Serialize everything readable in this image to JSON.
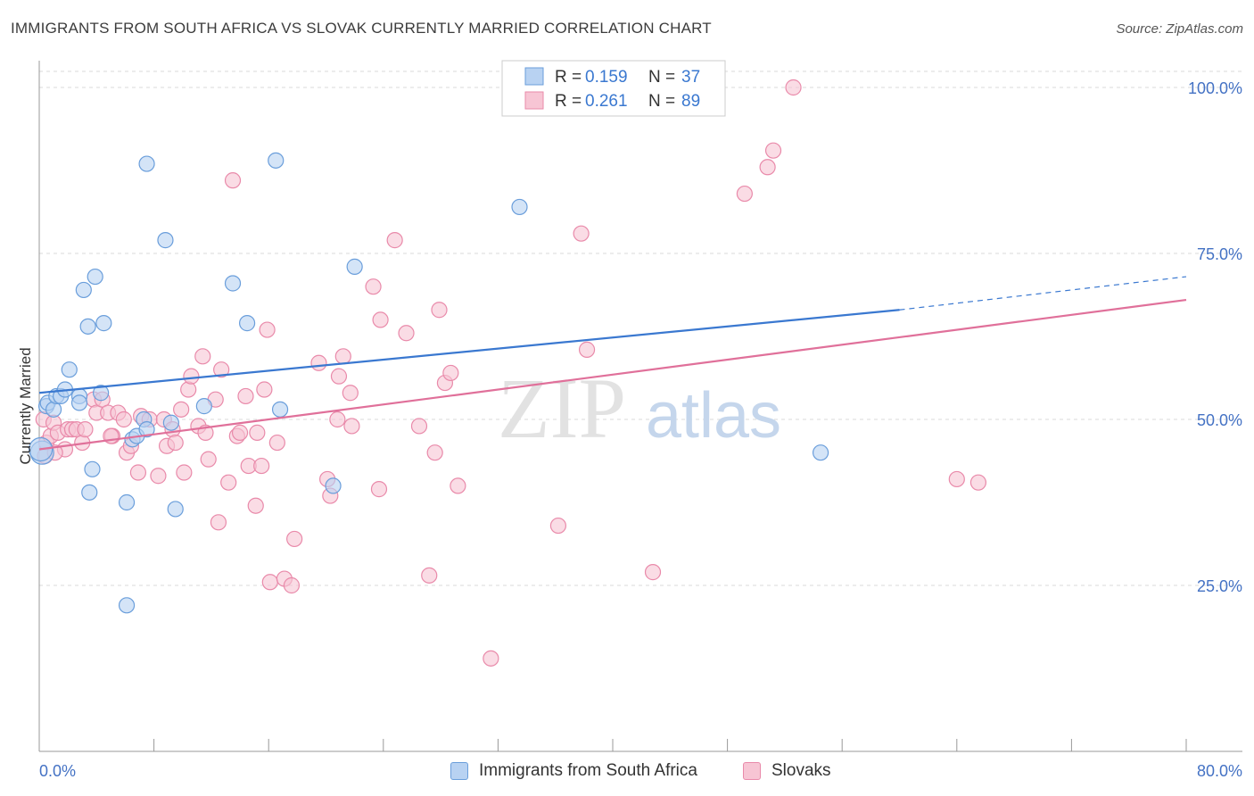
{
  "title": "IMMIGRANTS FROM SOUTH AFRICA VS SLOVAK CURRENTLY MARRIED CORRELATION CHART",
  "source": "Source: ZipAtlas.com",
  "watermark": {
    "zip": "ZIP",
    "atlas": "atlas"
  },
  "colors": {
    "blue_fill": "#b8d2f2",
    "blue_stroke": "#6a9edb",
    "blue_line": "#3a78d0",
    "pink_fill": "#f7c5d4",
    "pink_stroke": "#e98aaa",
    "pink_line": "#e0709a",
    "axis_label": "#4472c4",
    "grid": "#d9d9d9"
  },
  "legend_top": {
    "rows": [
      {
        "r_label": "R = ",
        "r_value": "0.159",
        "n_label": "N = ",
        "n_value": "37",
        "series": "blue"
      },
      {
        "r_label": "R = ",
        "r_value": "0.261",
        "n_label": "N = ",
        "n_value": "89",
        "series": "pink"
      }
    ]
  },
  "legend_bottom": {
    "blue_label": "Immigrants from South Africa",
    "pink_label": "Slovaks"
  },
  "chart_data": {
    "type": "scatter",
    "xlabel": "",
    "ylabel": "Currently Married",
    "xlim": [
      0,
      80
    ],
    "ylim": [
      0,
      100
    ],
    "x_tick_labels": {
      "left": "0.0%",
      "right": "80.0%"
    },
    "y_ticks": [
      {
        "value": 25,
        "label": "25.0%"
      },
      {
        "value": 50,
        "label": "50.0%"
      },
      {
        "value": 75,
        "label": "75.0%"
      },
      {
        "value": 100,
        "label": "100.0%"
      }
    ],
    "grid": true,
    "legend_position": "top-center",
    "series": [
      {
        "name": "Immigrants from South Africa",
        "color": "blue",
        "points": [
          [
            0.2,
            45.0
          ],
          [
            0.5,
            52.0
          ],
          [
            0.6,
            52.5
          ],
          [
            1.0,
            51.5
          ],
          [
            1.2,
            53.5
          ],
          [
            1.5,
            53.5
          ],
          [
            1.8,
            54.5
          ],
          [
            2.1,
            57.5
          ],
          [
            2.8,
            53.5
          ],
          [
            2.8,
            52.5
          ],
          [
            3.1,
            69.5
          ],
          [
            3.4,
            64.0
          ],
          [
            3.5,
            39.0
          ],
          [
            3.7,
            42.5
          ],
          [
            3.9,
            71.5
          ],
          [
            4.3,
            54.0
          ],
          [
            4.5,
            64.5
          ],
          [
            6.1,
            37.5
          ],
          [
            6.1,
            22.0
          ],
          [
            6.5,
            47.0
          ],
          [
            6.8,
            47.5
          ],
          [
            7.3,
            50.0
          ],
          [
            7.5,
            48.5
          ],
          [
            7.5,
            88.5
          ],
          [
            8.8,
            77.0
          ],
          [
            9.2,
            49.5
          ],
          [
            9.5,
            36.5
          ],
          [
            11.5,
            52.0
          ],
          [
            13.5,
            70.5
          ],
          [
            14.5,
            64.5
          ],
          [
            16.5,
            89.0
          ],
          [
            16.8,
            51.5
          ],
          [
            20.5,
            40.0
          ],
          [
            22.0,
            73.0
          ],
          [
            33.5,
            82.0
          ],
          [
            54.5,
            45.0
          ],
          [
            0.1,
            45.5
          ]
        ]
      },
      {
        "name": "Slovaks",
        "color": "pink",
        "points": [
          [
            0.3,
            50.0
          ],
          [
            0.5,
            46.5
          ],
          [
            0.8,
            47.5
          ],
          [
            1.0,
            49.5
          ],
          [
            1.3,
            48.0
          ],
          [
            1.8,
            45.5
          ],
          [
            2.0,
            48.5
          ],
          [
            2.3,
            48.5
          ],
          [
            2.6,
            48.5
          ],
          [
            3.0,
            46.5
          ],
          [
            3.2,
            48.5
          ],
          [
            3.8,
            53.0
          ],
          [
            4.0,
            51.0
          ],
          [
            4.4,
            53.0
          ],
          [
            4.8,
            51.0
          ],
          [
            5.1,
            47.5
          ],
          [
            5.5,
            51.0
          ],
          [
            5.9,
            50.0
          ],
          [
            6.1,
            45.0
          ],
          [
            6.4,
            46.0
          ],
          [
            6.9,
            42.0
          ],
          [
            7.1,
            50.5
          ],
          [
            7.7,
            50.0
          ],
          [
            8.3,
            41.5
          ],
          [
            8.7,
            50.0
          ],
          [
            8.9,
            46.0
          ],
          [
            9.3,
            48.5
          ],
          [
            9.9,
            51.5
          ],
          [
            10.1,
            42.0
          ],
          [
            10.4,
            54.5
          ],
          [
            10.6,
            56.5
          ],
          [
            11.1,
            49.0
          ],
          [
            11.4,
            59.5
          ],
          [
            11.6,
            48.0
          ],
          [
            11.8,
            44.0
          ],
          [
            12.3,
            53.0
          ],
          [
            12.5,
            34.5
          ],
          [
            12.7,
            57.5
          ],
          [
            13.2,
            40.5
          ],
          [
            13.5,
            86.0
          ],
          [
            13.8,
            47.5
          ],
          [
            14.0,
            48.0
          ],
          [
            14.4,
            53.5
          ],
          [
            14.6,
            43.0
          ],
          [
            15.1,
            37.0
          ],
          [
            15.2,
            48.0
          ],
          [
            15.5,
            43.0
          ],
          [
            15.7,
            54.5
          ],
          [
            15.9,
            63.5
          ],
          [
            16.1,
            25.5
          ],
          [
            16.6,
            46.5
          ],
          [
            17.1,
            26.0
          ],
          [
            17.6,
            25.0
          ],
          [
            17.8,
            32.0
          ],
          [
            19.5,
            58.5
          ],
          [
            20.1,
            41.0
          ],
          [
            20.3,
            38.5
          ],
          [
            20.8,
            50.0
          ],
          [
            20.9,
            56.5
          ],
          [
            21.2,
            59.5
          ],
          [
            21.7,
            54.0
          ],
          [
            21.8,
            49.0
          ],
          [
            23.3,
            70.0
          ],
          [
            23.7,
            39.5
          ],
          [
            23.8,
            65.0
          ],
          [
            24.8,
            77.0
          ],
          [
            25.6,
            63.0
          ],
          [
            26.5,
            49.0
          ],
          [
            27.2,
            26.5
          ],
          [
            27.6,
            45.0
          ],
          [
            27.9,
            66.5
          ],
          [
            28.3,
            55.5
          ],
          [
            28.7,
            57.0
          ],
          [
            29.2,
            40.0
          ],
          [
            31.5,
            14.0
          ],
          [
            36.2,
            34.0
          ],
          [
            37.8,
            78.0
          ],
          [
            38.2,
            60.5
          ],
          [
            42.8,
            27.0
          ],
          [
            49.2,
            84.0
          ],
          [
            50.8,
            88.0
          ],
          [
            51.2,
            90.5
          ],
          [
            52.6,
            100.0
          ],
          [
            64.0,
            41.0
          ],
          [
            65.5,
            40.5
          ],
          [
            0.4,
            44.5
          ],
          [
            1.1,
            45.0
          ],
          [
            5.0,
            47.5
          ],
          [
            9.5,
            46.5
          ]
        ]
      }
    ],
    "trend_lines": [
      {
        "series": "Immigrants from South Africa",
        "x": [
          0,
          60
        ],
        "y": [
          54.0,
          66.5
        ],
        "dashed_to": [
          80,
          71.5
        ]
      },
      {
        "series": "Slovaks",
        "x": [
          0,
          80
        ],
        "y": [
          45.5,
          68.0
        ]
      }
    ]
  }
}
